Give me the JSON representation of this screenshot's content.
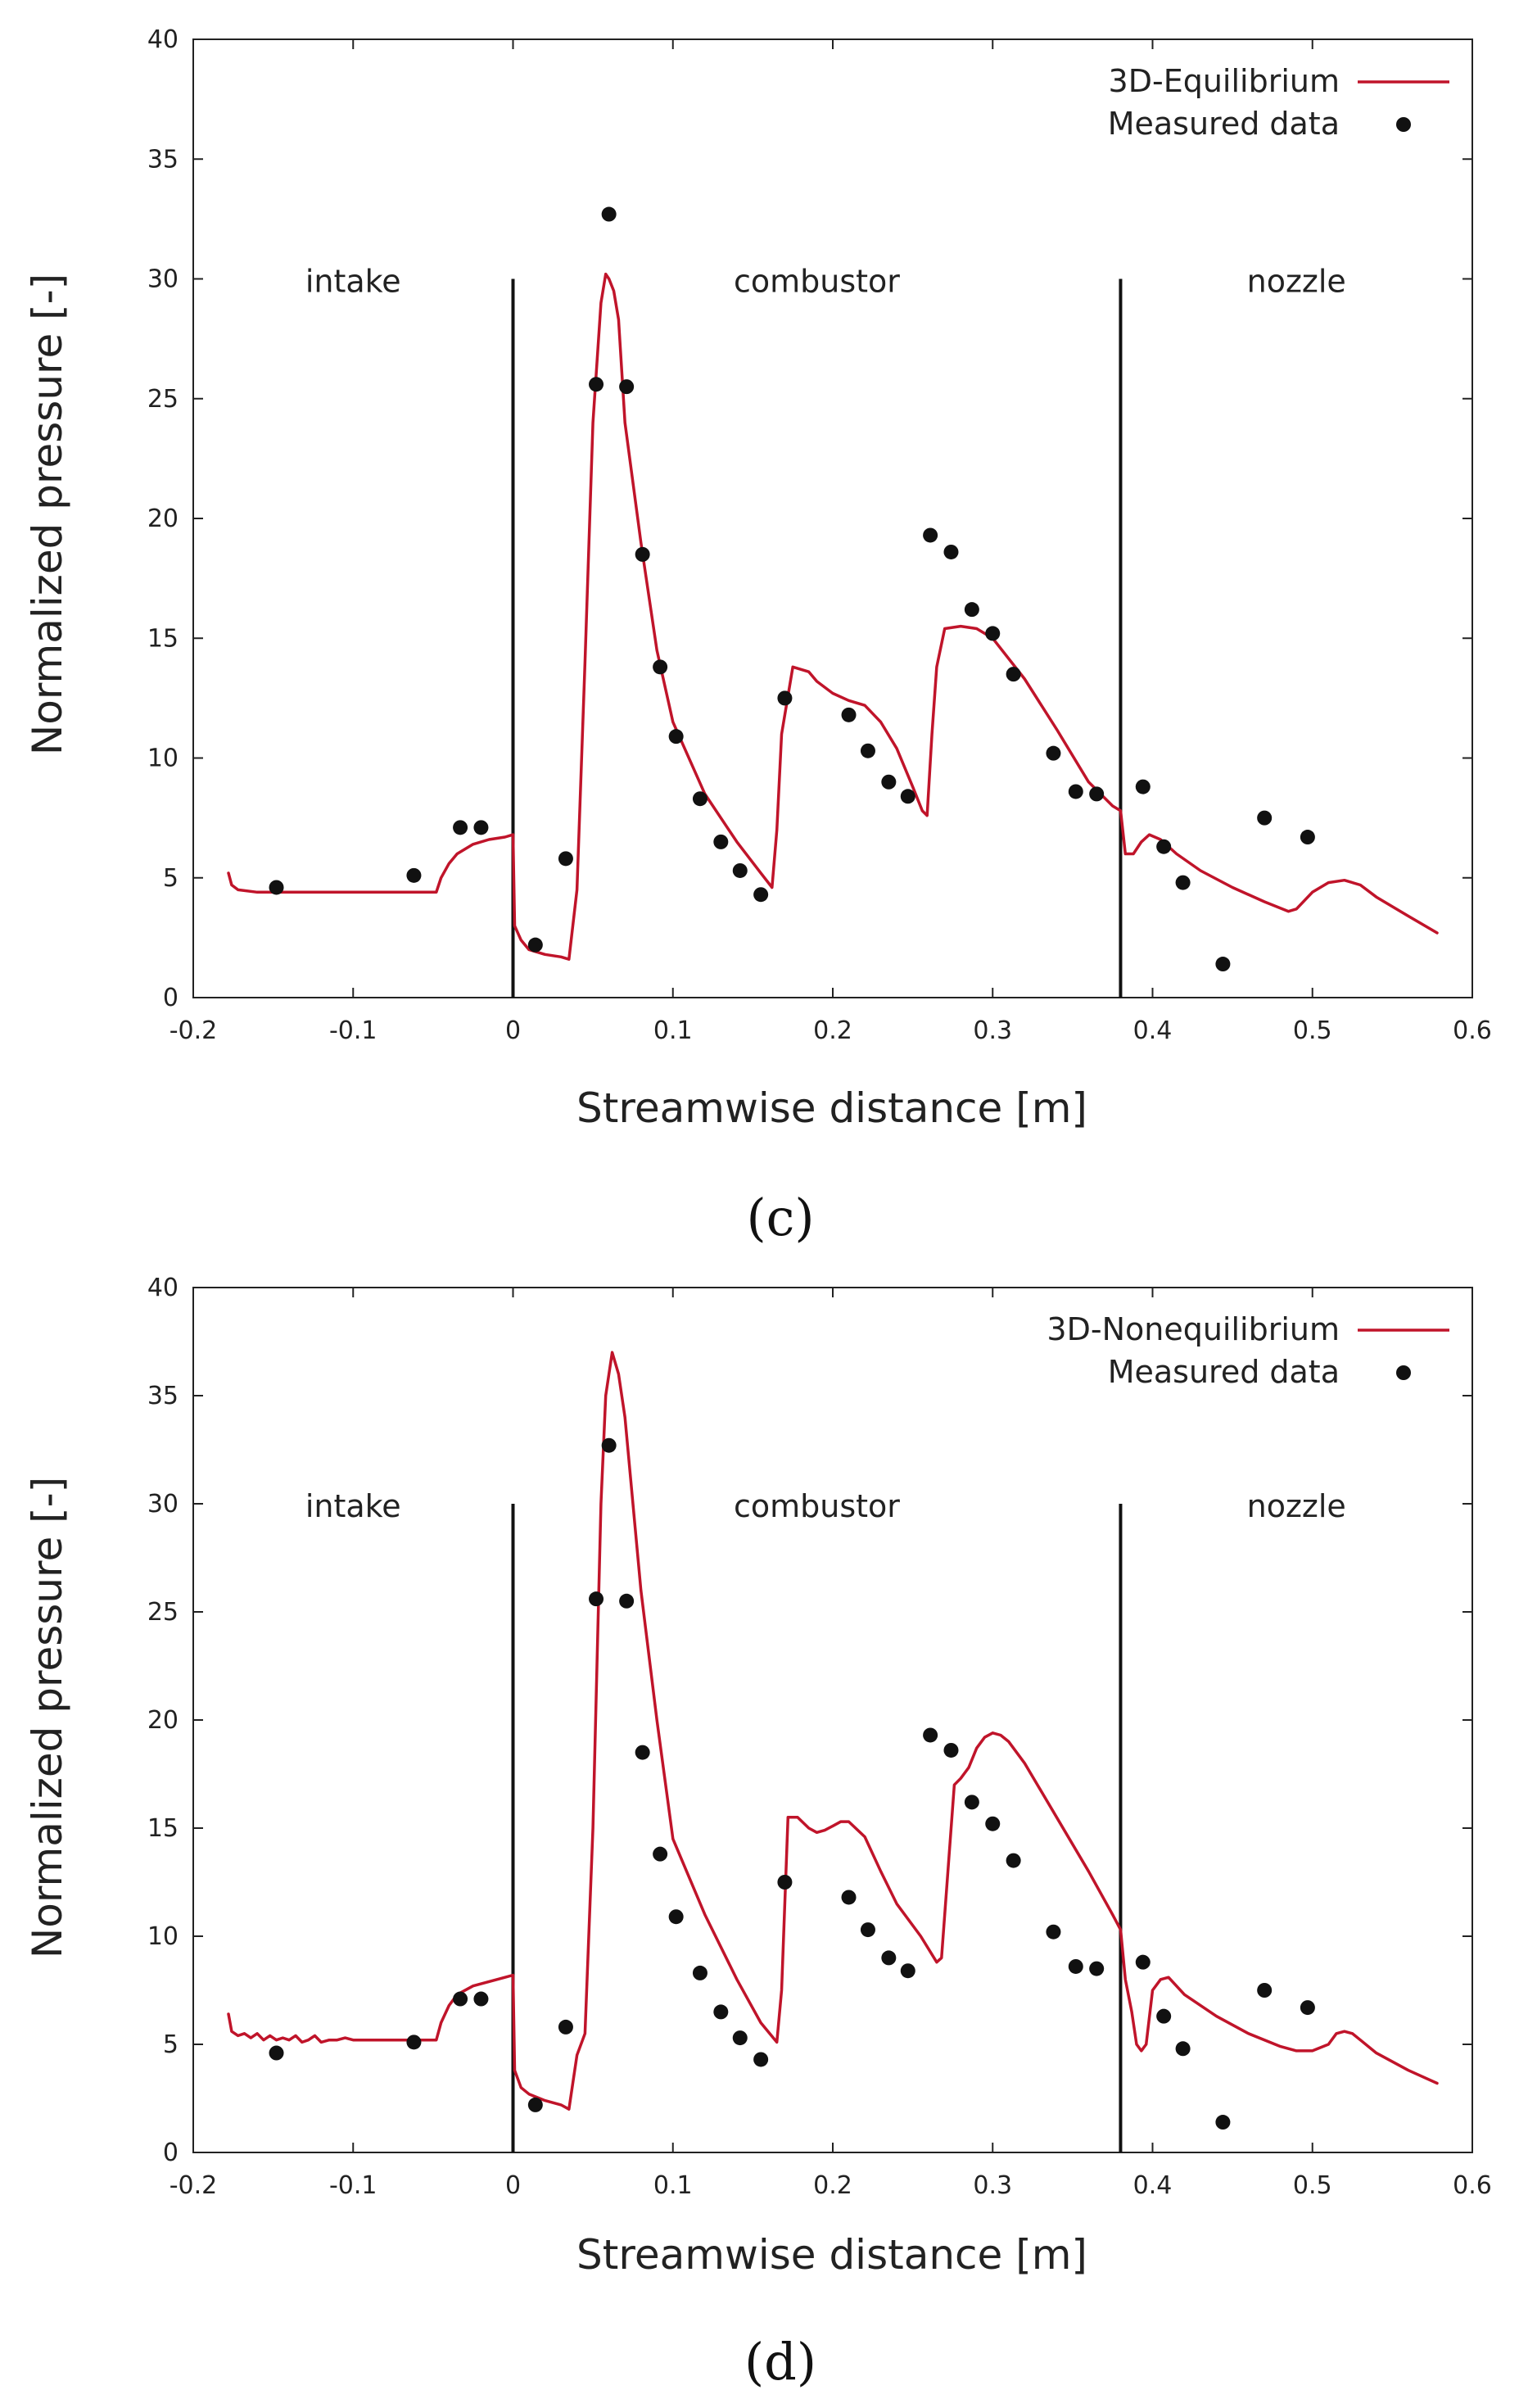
{
  "chart_data": [
    {
      "type": "line+scatter",
      "panel_label": "(c)",
      "xlabel": "Streamwise distance [m]",
      "ylabel": "Normalized pressure [-]",
      "xlim": [
        -0.2,
        0.6
      ],
      "ylim": [
        0,
        40
      ],
      "xticks": [
        -0.2,
        -0.1,
        0,
        0.1,
        0.2,
        0.3,
        0.4,
        0.5,
        0.6
      ],
      "xtick_labels": [
        "-0.2",
        "-0.1",
        "0",
        "0.1",
        "0.2",
        "0.3",
        "0.4",
        "0.5",
        "0.6"
      ],
      "yticks": [
        0,
        5,
        10,
        15,
        20,
        25,
        30,
        35,
        40
      ],
      "ytick_labels": [
        "0",
        "5",
        "10",
        "15",
        "20",
        "25",
        "30",
        "35",
        "40"
      ],
      "regions": [
        {
          "label": "intake",
          "x": -0.1
        },
        {
          "label": "combustor",
          "x": 0.19
        },
        {
          "label": "nozzle",
          "x": 0.49
        }
      ],
      "region_lines": [
        0,
        0.38
      ],
      "region_line_top": 30,
      "legend": {
        "line": "3D-Equilibrium",
        "points": "Measured data",
        "position": "top-right"
      },
      "colors": {
        "line": "#c0142a",
        "points": "#111111"
      },
      "series": [
        {
          "name": "3D-Equilibrium",
          "x": [
            -0.178,
            -0.176,
            -0.172,
            -0.16,
            -0.14,
            -0.1,
            -0.06,
            -0.048,
            -0.045,
            -0.04,
            -0.035,
            -0.025,
            -0.015,
            -0.005,
            0.0,
            0.001,
            0.005,
            0.01,
            0.02,
            0.03,
            0.035,
            0.04,
            0.045,
            0.05,
            0.055,
            0.058,
            0.06,
            0.063,
            0.066,
            0.07,
            0.08,
            0.09,
            0.1,
            0.12,
            0.14,
            0.155,
            0.162,
            0.165,
            0.168,
            0.175,
            0.185,
            0.19,
            0.2,
            0.21,
            0.22,
            0.23,
            0.24,
            0.25,
            0.256,
            0.259,
            0.262,
            0.265,
            0.27,
            0.28,
            0.29,
            0.3,
            0.32,
            0.34,
            0.36,
            0.375,
            0.38,
            0.383,
            0.388,
            0.393,
            0.398,
            0.405,
            0.415,
            0.43,
            0.45,
            0.47,
            0.485,
            0.49,
            0.5,
            0.51,
            0.52,
            0.53,
            0.54,
            0.56,
            0.578
          ],
          "y": [
            5.2,
            4.7,
            4.5,
            4.4,
            4.4,
            4.4,
            4.4,
            4.4,
            5.0,
            5.6,
            6.0,
            6.4,
            6.6,
            6.7,
            6.8,
            3.0,
            2.4,
            2.0,
            1.8,
            1.7,
            1.6,
            4.5,
            14.0,
            24.0,
            29.0,
            30.2,
            30.0,
            29.5,
            28.3,
            24.0,
            19.0,
            14.5,
            11.5,
            8.5,
            6.5,
            5.2,
            4.6,
            7.0,
            11.0,
            13.8,
            13.6,
            13.2,
            12.7,
            12.4,
            12.2,
            11.5,
            10.4,
            8.8,
            7.8,
            7.6,
            11.0,
            13.8,
            15.4,
            15.5,
            15.4,
            15.0,
            13.3,
            11.2,
            9.0,
            8.0,
            7.8,
            6.0,
            6.0,
            6.5,
            6.8,
            6.6,
            6.0,
            5.3,
            4.6,
            4.0,
            3.6,
            3.7,
            4.4,
            4.8,
            4.9,
            4.7,
            4.2,
            3.4,
            2.7
          ]
        }
      ],
      "points": {
        "name": "Measured data",
        "x": [
          -0.148,
          -0.062,
          -0.033,
          -0.02,
          0.014,
          0.033,
          0.052,
          0.06,
          0.071,
          0.081,
          0.092,
          0.102,
          0.117,
          0.13,
          0.142,
          0.155,
          0.17,
          0.21,
          0.222,
          0.235,
          0.247,
          0.261,
          0.274,
          0.287,
          0.3,
          0.313,
          0.338,
          0.352,
          0.365,
          0.394,
          0.407,
          0.419,
          0.444,
          0.47,
          0.497
        ],
        "y": [
          4.6,
          5.1,
          7.1,
          7.1,
          2.2,
          5.8,
          25.6,
          32.7,
          25.5,
          18.5,
          13.8,
          10.9,
          8.3,
          6.5,
          5.3,
          4.3,
          12.5,
          11.8,
          10.3,
          9.0,
          8.4,
          19.3,
          18.6,
          16.2,
          15.2,
          13.5,
          10.2,
          8.6,
          8.5,
          8.8,
          6.3,
          4.8,
          1.4,
          7.5,
          6.7
        ]
      }
    },
    {
      "type": "line+scatter",
      "panel_label": "(d)",
      "xlabel": "Streamwise distance [m]",
      "ylabel": "Normalized pressure [-]",
      "xlim": [
        -0.2,
        0.6
      ],
      "ylim": [
        0,
        40
      ],
      "xticks": [
        -0.2,
        -0.1,
        0,
        0.1,
        0.2,
        0.3,
        0.4,
        0.5,
        0.6
      ],
      "xtick_labels": [
        "-0.2",
        "-0.1",
        "0",
        "0.1",
        "0.2",
        "0.3",
        "0.4",
        "0.5",
        "0.6"
      ],
      "yticks": [
        0,
        5,
        10,
        15,
        20,
        25,
        30,
        35,
        40
      ],
      "ytick_labels": [
        "0",
        "5",
        "10",
        "15",
        "20",
        "25",
        "30",
        "35",
        "40"
      ],
      "regions": [
        {
          "label": "intake",
          "x": -0.1
        },
        {
          "label": "combustor",
          "x": 0.19
        },
        {
          "label": "nozzle",
          "x": 0.49
        }
      ],
      "region_lines": [
        0,
        0.38
      ],
      "region_line_top": 30,
      "legend": {
        "line": "3D-Nonequilibrium",
        "points": "Measured data",
        "position": "top-right"
      },
      "colors": {
        "line": "#c0142a",
        "points": "#111111"
      },
      "series": [
        {
          "name": "3D-Nonequilibrium",
          "x": [
            -0.178,
            -0.176,
            -0.172,
            -0.168,
            -0.164,
            -0.16,
            -0.156,
            -0.152,
            -0.148,
            -0.144,
            -0.14,
            -0.136,
            -0.132,
            -0.128,
            -0.124,
            -0.12,
            -0.115,
            -0.11,
            -0.105,
            -0.1,
            -0.09,
            -0.08,
            -0.07,
            -0.06,
            -0.05,
            -0.048,
            -0.045,
            -0.04,
            -0.035,
            -0.025,
            -0.015,
            -0.005,
            0.0,
            0.001,
            0.005,
            0.01,
            0.02,
            0.03,
            0.035,
            0.04,
            0.045,
            0.05,
            0.055,
            0.058,
            0.062,
            0.066,
            0.07,
            0.08,
            0.09,
            0.1,
            0.12,
            0.14,
            0.155,
            0.165,
            0.168,
            0.172,
            0.178,
            0.185,
            0.19,
            0.195,
            0.2,
            0.205,
            0.21,
            0.22,
            0.23,
            0.24,
            0.255,
            0.265,
            0.268,
            0.272,
            0.276,
            0.28,
            0.285,
            0.29,
            0.295,
            0.3,
            0.305,
            0.31,
            0.32,
            0.34,
            0.36,
            0.375,
            0.38,
            0.383,
            0.387,
            0.39,
            0.393,
            0.396,
            0.4,
            0.405,
            0.41,
            0.42,
            0.44,
            0.46,
            0.48,
            0.49,
            0.5,
            0.51,
            0.515,
            0.52,
            0.525,
            0.53,
            0.54,
            0.56,
            0.578
          ],
          "y": [
            6.4,
            5.6,
            5.4,
            5.5,
            5.3,
            5.5,
            5.2,
            5.4,
            5.2,
            5.3,
            5.2,
            5.4,
            5.1,
            5.2,
            5.4,
            5.1,
            5.2,
            5.2,
            5.3,
            5.2,
            5.2,
            5.2,
            5.2,
            5.2,
            5.2,
            5.2,
            6.0,
            6.8,
            7.3,
            7.7,
            7.9,
            8.1,
            8.2,
            3.8,
            3.0,
            2.7,
            2.4,
            2.2,
            2.0,
            4.5,
            5.5,
            15.0,
            30.0,
            35.0,
            37.0,
            36.0,
            34.0,
            26.0,
            20.0,
            14.5,
            11.0,
            8.0,
            6.0,
            5.1,
            7.5,
            15.5,
            15.5,
            15.0,
            14.8,
            14.9,
            15.1,
            15.3,
            15.3,
            14.6,
            13.0,
            11.5,
            10.0,
            8.8,
            9.0,
            13.0,
            17.0,
            17.3,
            17.8,
            18.7,
            19.2,
            19.4,
            19.3,
            19.0,
            18.0,
            15.5,
            13.0,
            11.0,
            10.3,
            8.0,
            6.5,
            5.0,
            4.7,
            5.0,
            7.5,
            8.0,
            8.1,
            7.3,
            6.3,
            5.5,
            4.9,
            4.7,
            4.7,
            5.0,
            5.5,
            5.6,
            5.5,
            5.2,
            4.6,
            3.8,
            3.2
          ]
        }
      ],
      "points": {
        "name": "Measured data",
        "x": [
          -0.148,
          -0.062,
          -0.033,
          -0.02,
          0.014,
          0.033,
          0.052,
          0.06,
          0.071,
          0.081,
          0.092,
          0.102,
          0.117,
          0.13,
          0.142,
          0.155,
          0.17,
          0.21,
          0.222,
          0.235,
          0.247,
          0.261,
          0.274,
          0.287,
          0.3,
          0.313,
          0.338,
          0.352,
          0.365,
          0.394,
          0.407,
          0.419,
          0.444,
          0.47,
          0.497
        ],
        "y": [
          4.6,
          5.1,
          7.1,
          7.1,
          2.2,
          5.8,
          25.6,
          32.7,
          25.5,
          18.5,
          13.8,
          10.9,
          8.3,
          6.5,
          5.3,
          4.3,
          12.5,
          11.8,
          10.3,
          9.0,
          8.4,
          19.3,
          18.6,
          16.2,
          15.2,
          13.5,
          10.2,
          8.6,
          8.5,
          8.8,
          6.3,
          4.8,
          1.4,
          7.5,
          6.7
        ]
      }
    }
  ]
}
